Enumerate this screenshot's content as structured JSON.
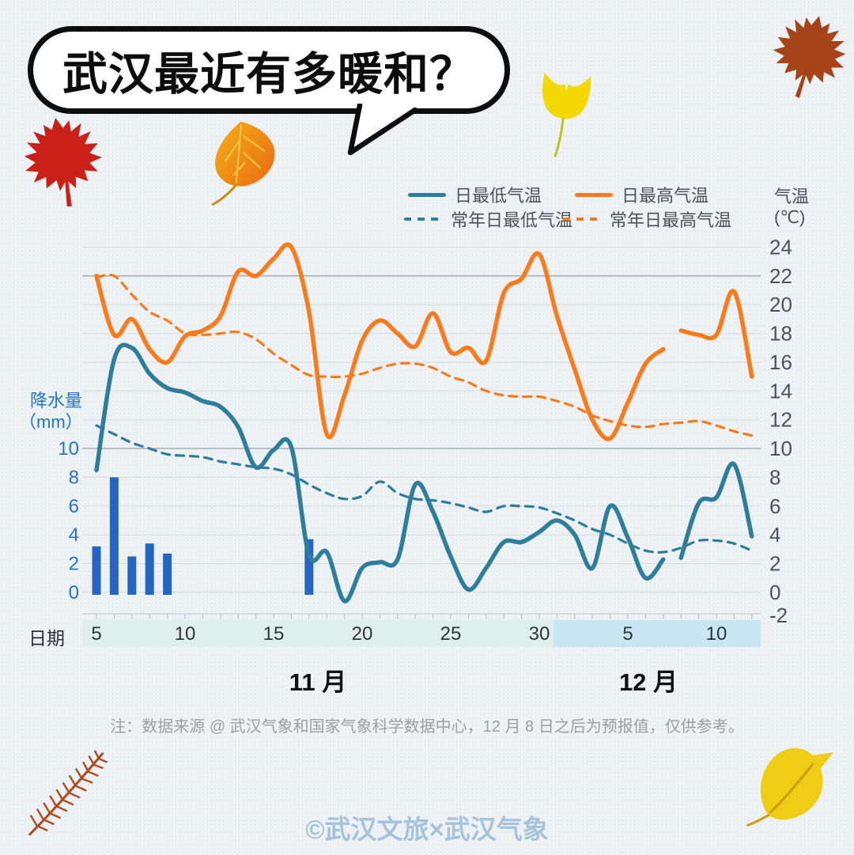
{
  "page": {
    "title": "武汉最近有多暖和？",
    "note": "注：数据来源 @ 武汉气象和国家气象科学数据中心，12 月 8 日之后为预报值，仅供参考。",
    "footer": "©武汉文旅×武汉气象",
    "background_color": "#eef2f4"
  },
  "icons": {
    "leaves": [
      "maple-leaf-rust",
      "maple-leaf-red",
      "poplar-leaf-orange",
      "ginkgo-leaf-yellow",
      "fern-frond-rust",
      "autumn-leaf-yellow"
    ]
  },
  "chart_data": {
    "type": "mixed-line-bar",
    "temp_axis": {
      "title": "气温",
      "unit": "(℃)",
      "ticks": [
        24,
        22,
        20,
        18,
        16,
        14,
        12,
        10,
        8,
        6,
        4,
        2,
        0,
        -2
      ],
      "range": [
        -2,
        24
      ],
      "emphasized_gridlines": [
        22,
        10
      ],
      "tick_color": "#4c5358"
    },
    "precip_axis": {
      "title": "降水量",
      "unit": "（mm）",
      "ticks": [
        10,
        8,
        6,
        4,
        2,
        0
      ],
      "range": [
        0,
        10
      ],
      "tick_color": "#2273cc"
    },
    "x_axis": {
      "label": "日期",
      "start": "11-05",
      "end": "12-12",
      "months": [
        {
          "name": "11 月",
          "days": [
            5,
            10,
            15,
            20,
            25,
            30
          ],
          "band_color": "#dff0ec"
        },
        {
          "name": "12 月",
          "days": [
            5,
            10
          ],
          "band_color": "#c9e7f3"
        }
      ]
    },
    "forecast_note": "12 月 8 日之后为预报值",
    "series": [
      {
        "name": "日最低气温",
        "type": "line",
        "style": "solid",
        "color": "#2d7e9c",
        "observed": [
          8.5,
          16.2,
          17,
          15.2,
          14.2,
          13.9,
          13.3,
          12.9,
          11.5,
          8.7,
          9.9,
          10.1,
          2.6,
          2.8,
          -0.6,
          1.7,
          2.1,
          2.3,
          7.5,
          5.6,
          2.5,
          0.2,
          1.7,
          3.5,
          3.5,
          4.2,
          5,
          4,
          1.7,
          6,
          3.8,
          1,
          2.3
        ],
        "forecast": [
          2.4,
          6.2,
          6.6,
          8.9,
          3.9
        ]
      },
      {
        "name": "日最高气温",
        "type": "line",
        "style": "solid",
        "color": "#fa7a1c",
        "observed": [
          22,
          17.9,
          19,
          16.9,
          16,
          17.8,
          18.2,
          19.2,
          22.3,
          22,
          23.2,
          24,
          19.5,
          11,
          13.7,
          17.5,
          18.9,
          18,
          17.1,
          19.4,
          16.7,
          17,
          16.1,
          20.8,
          21.8,
          23.5,
          19.2,
          15.5,
          12,
          10.7,
          13.2,
          15.9,
          16.9
        ],
        "forecast": [
          18.2,
          17.9,
          17.9,
          20.9,
          15
        ]
      },
      {
        "name": "常年日最低气温",
        "type": "line",
        "style": "dashed",
        "color": "#2d7e9c",
        "values": [
          11.6,
          11,
          10.4,
          10,
          9.6,
          9.5,
          9.4,
          9.1,
          8.9,
          8.7,
          8.6,
          8.2,
          7.5,
          6.9,
          6.5,
          6.7,
          7.7,
          6.9,
          6.5,
          6.4,
          6.2,
          5.9,
          5.6,
          6,
          6,
          5.9,
          5.5,
          5,
          4.4,
          4,
          3.4,
          2.9,
          2.8,
          3.1,
          3.6,
          3.6,
          3.4,
          2.9
        ]
      },
      {
        "name": "常年日最高气温",
        "type": "line",
        "style": "dashed",
        "color": "#fa7a1c",
        "values": [
          21.9,
          22,
          20.7,
          19.5,
          18.9,
          18,
          17.9,
          18,
          18.1,
          17.6,
          16.6,
          15.8,
          15.1,
          15,
          15,
          15.2,
          15.6,
          15.9,
          15.9,
          15.6,
          15,
          14.6,
          14,
          13.7,
          13.6,
          13.6,
          13.3,
          12.9,
          12.3,
          11.9,
          11.6,
          11.5,
          11.7,
          11.8,
          11.9,
          11.6,
          11.2,
          10.9
        ]
      },
      {
        "name": "降水量",
        "type": "bar",
        "color": "#2565c6",
        "values": [
          3.2,
          8,
          2.5,
          3.4,
          2.7,
          0,
          0,
          0,
          0,
          0,
          0,
          0,
          3.7,
          0,
          0,
          0,
          0,
          0,
          0,
          0,
          0,
          0,
          0,
          0,
          0,
          0,
          0,
          0,
          0,
          0,
          0,
          0,
          0,
          0,
          0,
          0,
          0,
          0
        ]
      }
    ],
    "colors": {
      "gridline": "#d7dcdf",
      "gridline_dark": "#9fa8ad",
      "axis_line": "#c2cacd",
      "day_tick": "#b6bfc3",
      "date_label": "#2f3437"
    }
  }
}
